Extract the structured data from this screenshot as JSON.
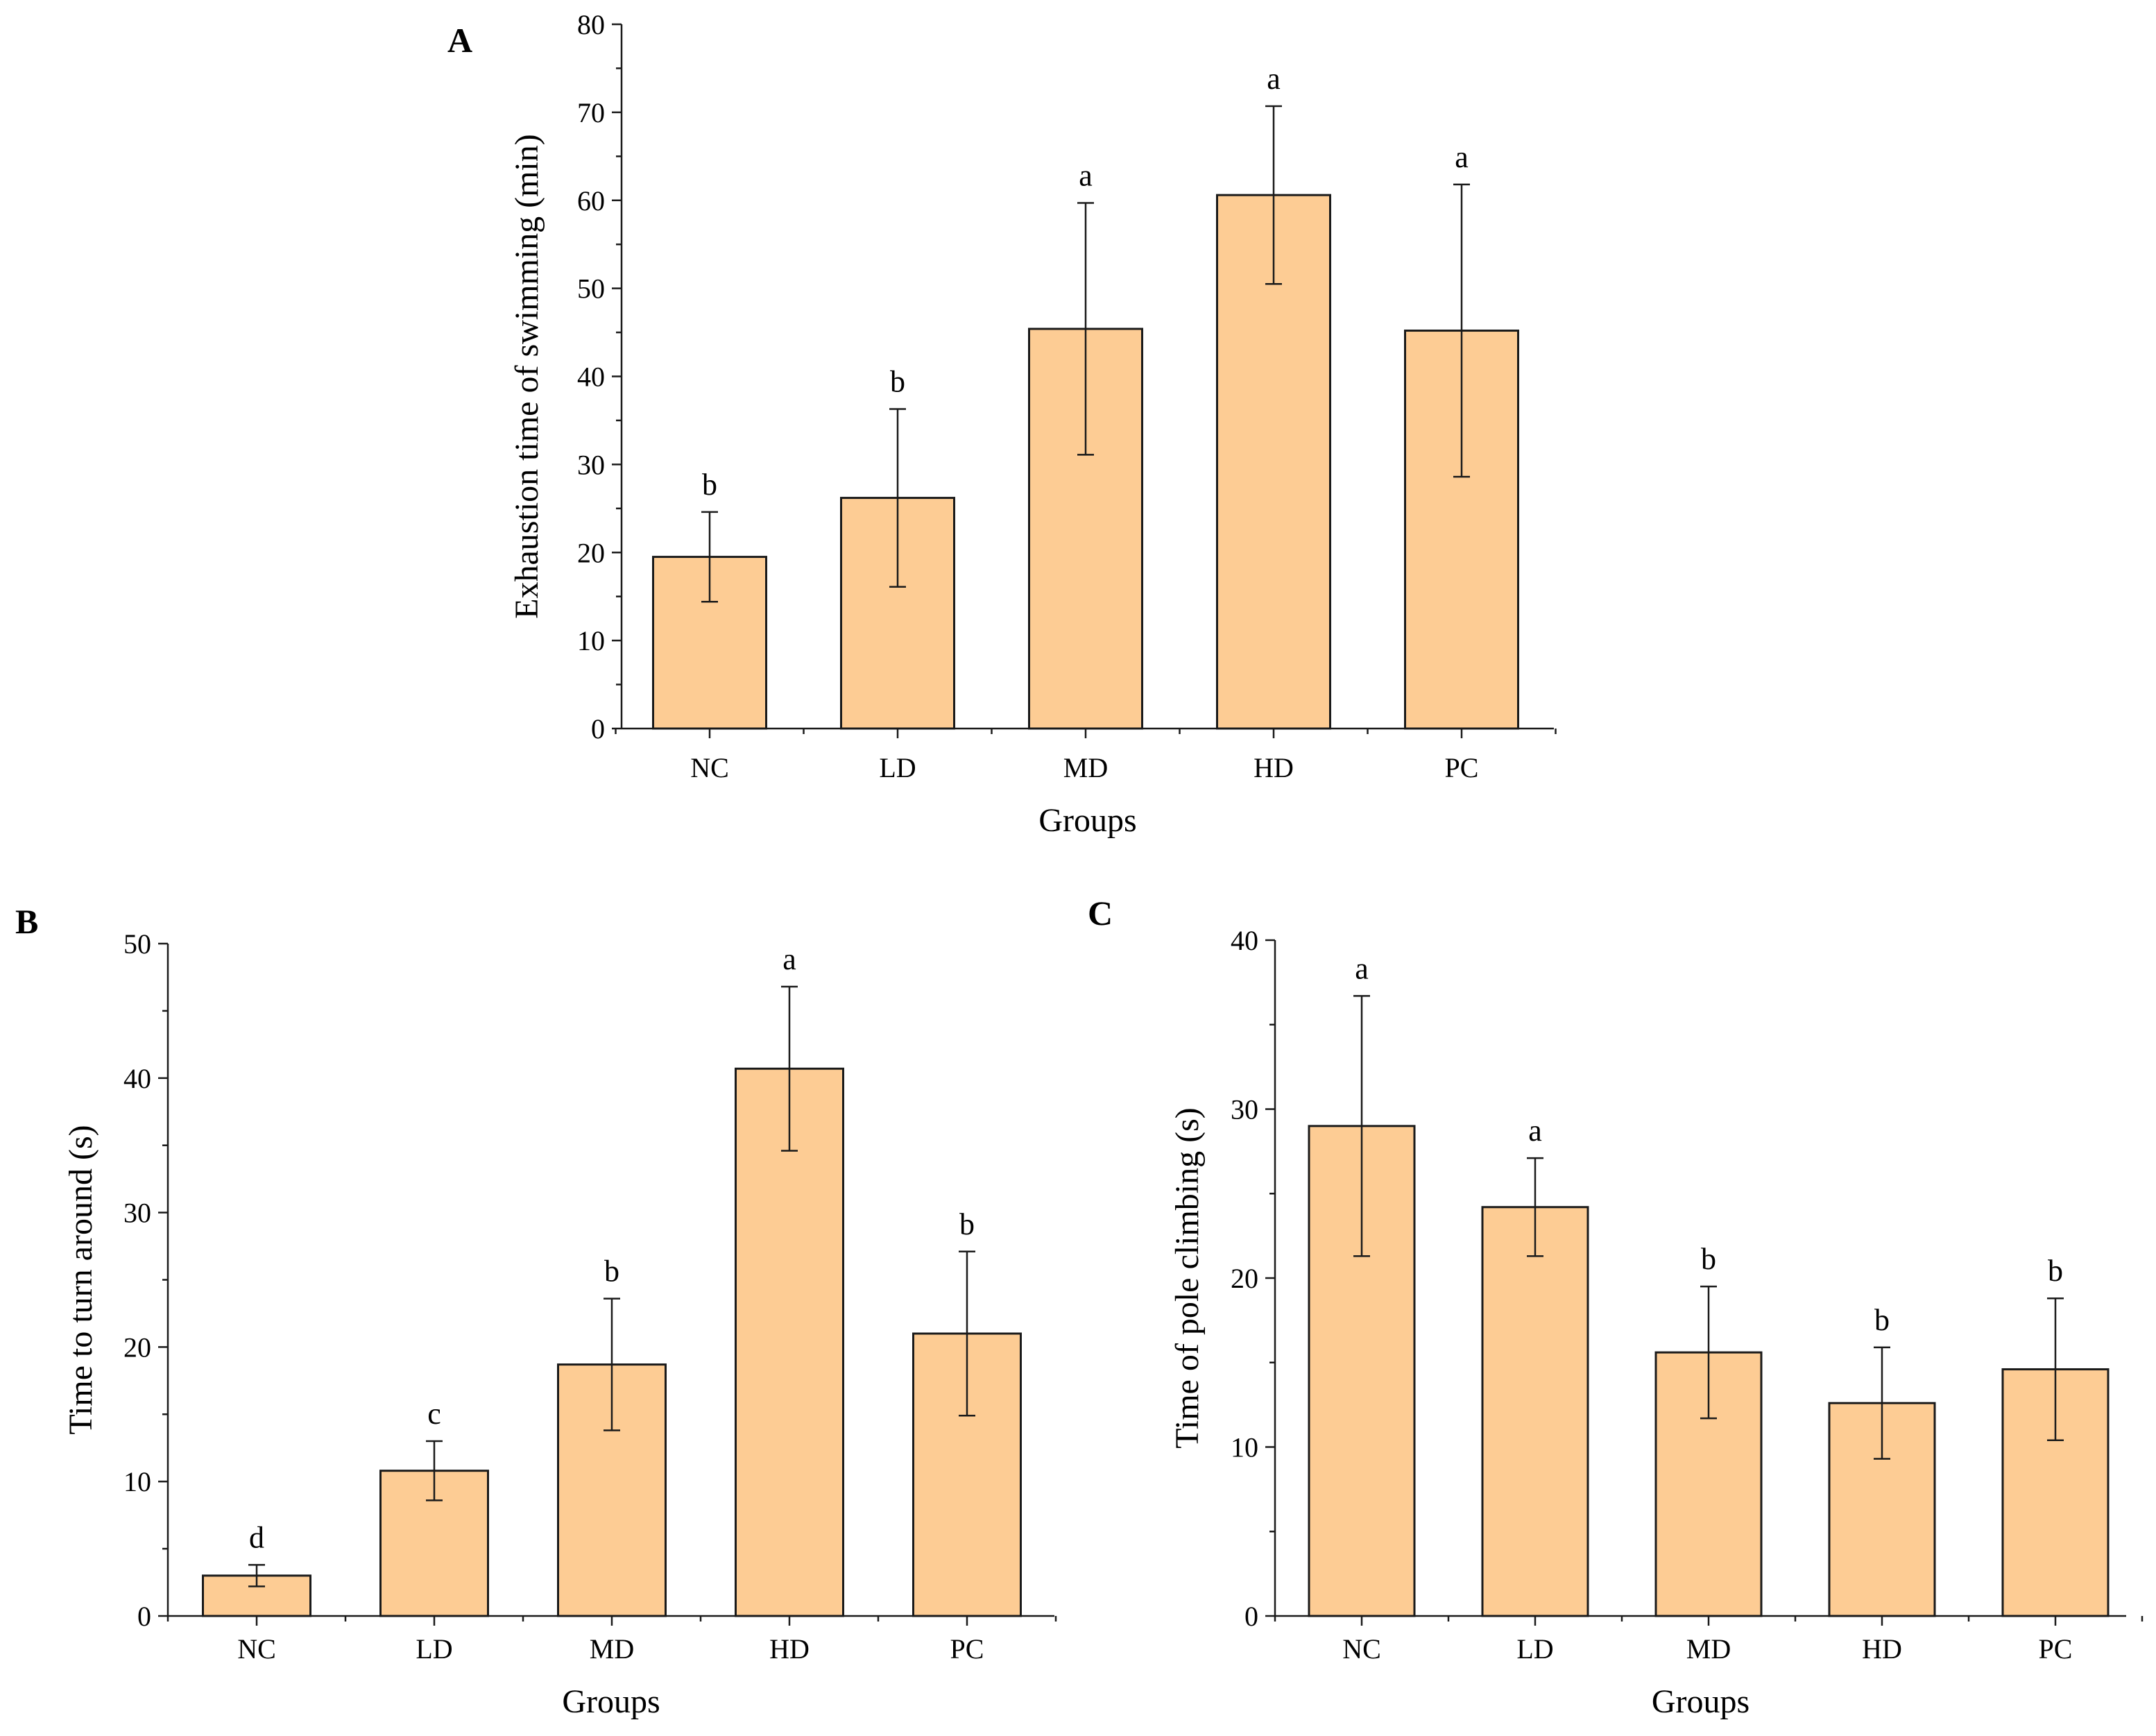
{
  "figure": {
    "bar_color": "#FDCC94",
    "line_color": "#1a1a1a"
  },
  "chart_data": [
    {
      "panel": "A",
      "type": "bar",
      "title": "",
      "categories": [
        "NC",
        "LD",
        "MD",
        "HD",
        "PC"
      ],
      "values": [
        19.5,
        26.2,
        45.4,
        60.6,
        45.2
      ],
      "errors": [
        5.1,
        10.1,
        14.3,
        10.1,
        16.6
      ],
      "significance": [
        "b",
        "b",
        "a",
        "a",
        "a"
      ],
      "xlabel": "Groups",
      "ylabel": "Exhaustion time of swimming (min)",
      "ylim": [
        0,
        80
      ],
      "yticks": [
        0,
        10,
        20,
        30,
        40,
        50,
        60,
        70,
        80
      ],
      "grid": false
    },
    {
      "panel": "B",
      "type": "bar",
      "title": "",
      "categories": [
        "NC",
        "LD",
        "MD",
        "HD",
        "PC"
      ],
      "values": [
        3.0,
        10.8,
        18.7,
        40.7,
        21.0
      ],
      "errors": [
        0.8,
        2.2,
        4.9,
        6.1,
        6.1
      ],
      "significance": [
        "d",
        "c",
        "b",
        "a",
        "b"
      ],
      "xlabel": "Groups",
      "ylabel": "Time to turn around (s)",
      "ylim": [
        0,
        50
      ],
      "yticks": [
        0,
        10,
        20,
        30,
        40,
        50
      ],
      "grid": false
    },
    {
      "panel": "C",
      "type": "bar",
      "title": "",
      "categories": [
        "NC",
        "LD",
        "MD",
        "HD",
        "PC"
      ],
      "values": [
        29.0,
        24.2,
        15.6,
        12.6,
        14.6
      ],
      "errors": [
        7.7,
        2.9,
        3.9,
        3.3,
        4.2
      ],
      "significance": [
        "a",
        "a",
        "b",
        "b",
        "b"
      ],
      "xlabel": "Groups",
      "ylabel": "Time of pole climbing (s)",
      "ylim": [
        0,
        40
      ],
      "yticks": [
        0,
        10,
        20,
        30,
        40
      ],
      "grid": false
    }
  ]
}
